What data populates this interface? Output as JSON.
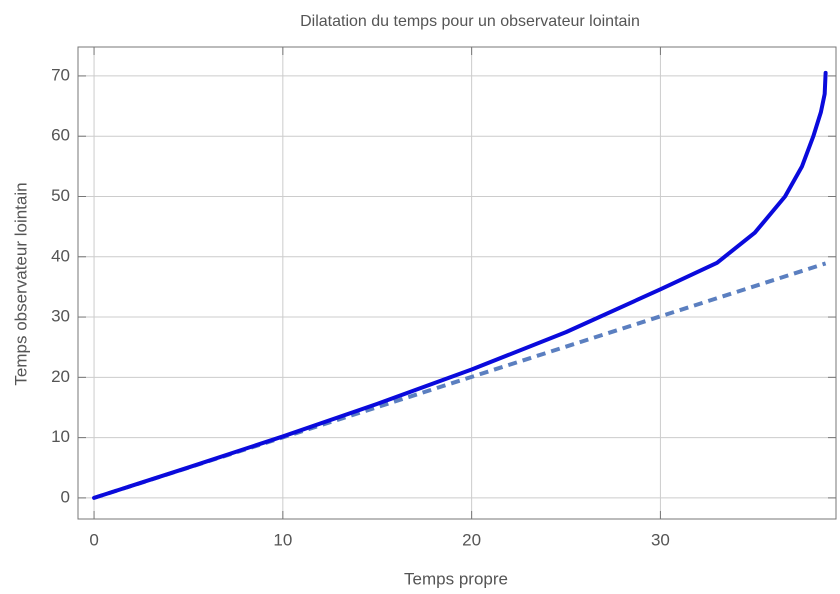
{
  "chart_data": {
    "type": "line",
    "title": "Dilatation du temps pour un observateur lointain",
    "xlabel": "Temps propre",
    "ylabel": "Temps observateur lointain",
    "series": [
      {
        "color": "#0a0adc",
        "dashed": false,
        "x": [
          0,
          5,
          10,
          15,
          20,
          25,
          30,
          33,
          35,
          36.6,
          37.5,
          38.1,
          38.5,
          38.7,
          38.75
        ],
        "values": [
          0,
          5.05,
          10.2,
          15.6,
          21.3,
          27.5,
          34.6,
          39,
          44,
          50,
          55,
          60,
          64,
          67,
          70.5
        ]
      },
      {
        "color": "#5b7fc0",
        "dashed": true,
        "x": [
          0,
          38.75
        ],
        "values": [
          0,
          38.9
        ]
      }
    ],
    "xlim": [
      -0.85,
      39.3
    ],
    "ylim": [
      -3.5,
      74.8
    ],
    "xticks": [
      0,
      10,
      20,
      30
    ],
    "yticks": [
      0,
      10,
      20,
      30,
      40,
      50,
      60,
      70
    ],
    "grid": true
  }
}
